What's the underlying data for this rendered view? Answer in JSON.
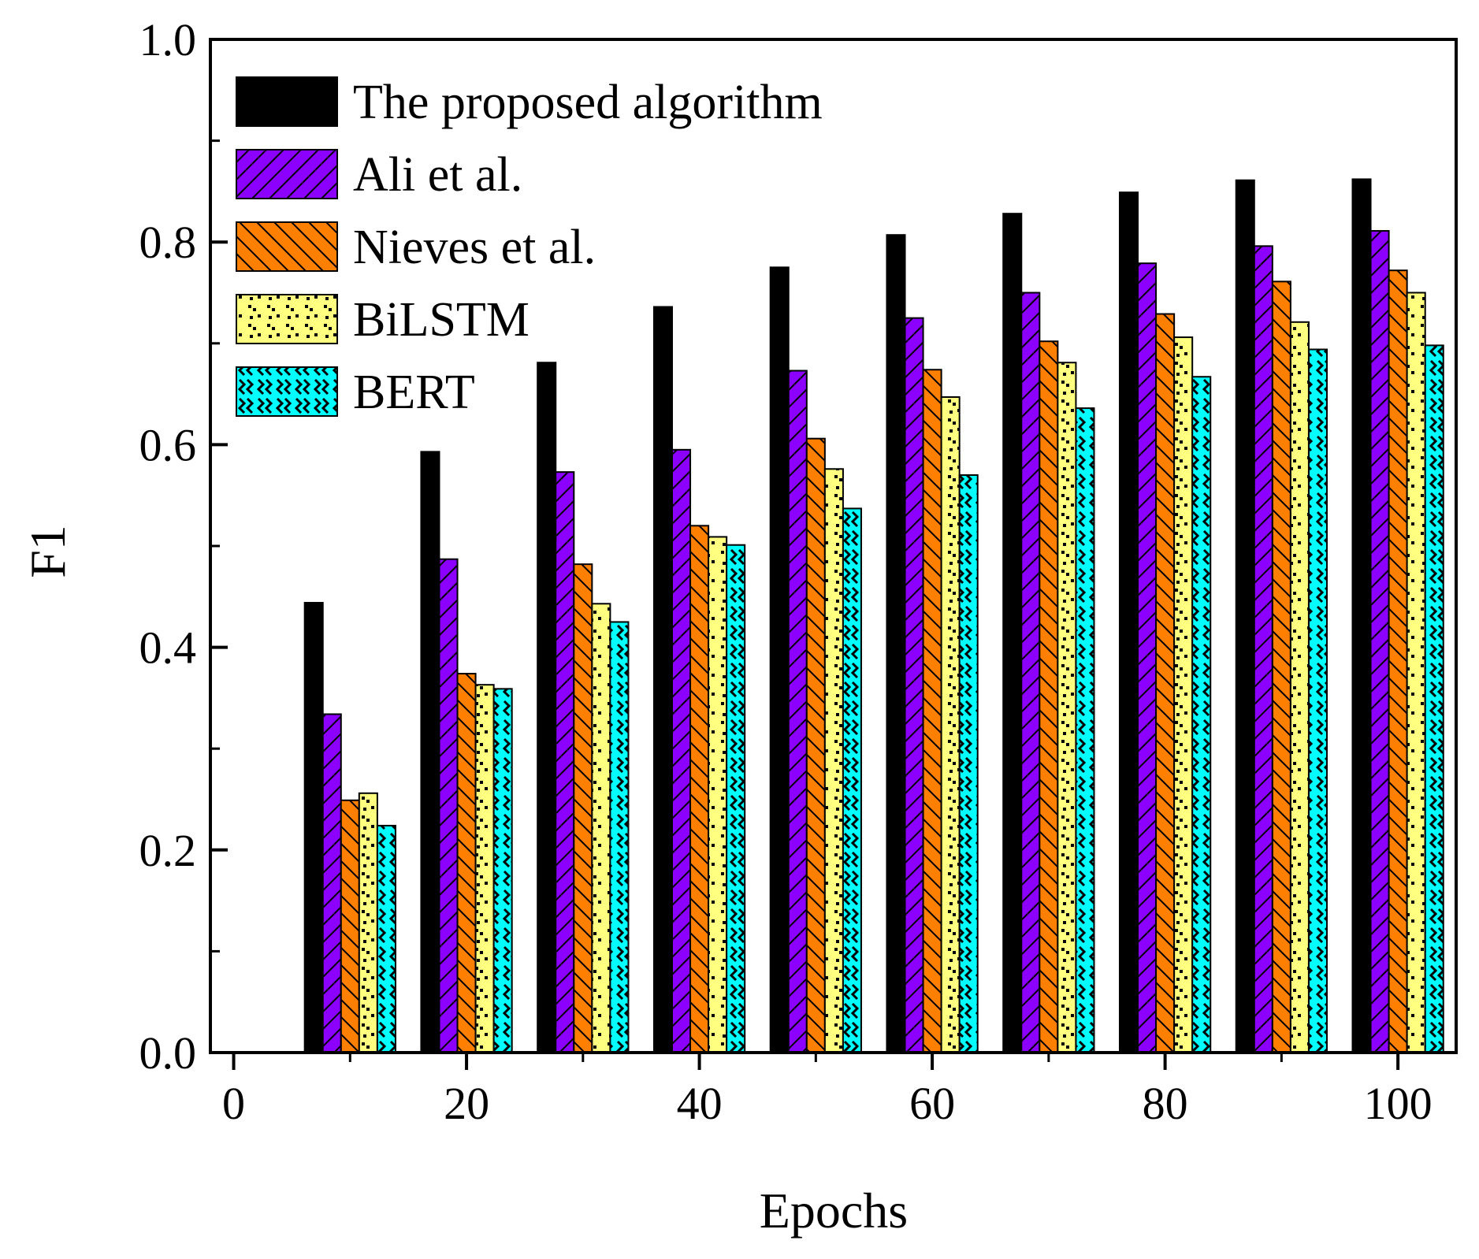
{
  "chart_data": {
    "type": "bar",
    "xlabel": "Epochs",
    "ylabel": "F1",
    "xlim": [
      -2,
      105
    ],
    "ylim": [
      0.0,
      1.0
    ],
    "x_ticks": [
      0,
      20,
      40,
      60,
      80,
      100
    ],
    "y_ticks": [
      0.0,
      0.2,
      0.4,
      0.6,
      0.8,
      1.0
    ],
    "x_tick_labels": [
      "0",
      "20",
      "40",
      "60",
      "80",
      "100"
    ],
    "y_tick_labels": [
      "0.0",
      "0.2",
      "0.4",
      "0.6",
      "0.8",
      "1.0"
    ],
    "categories": [
      10,
      20,
      30,
      40,
      50,
      60,
      70,
      80,
      90,
      100
    ],
    "grid": false,
    "legend_position": "top-left",
    "series": [
      {
        "name": "The proposed algorithm",
        "color": "#000000",
        "pattern": "solid",
        "values": [
          0.444,
          0.593,
          0.681,
          0.736,
          0.775,
          0.807,
          0.828,
          0.849,
          0.861,
          0.862
        ]
      },
      {
        "name": "Ali et al.",
        "color": "#8b00ff",
        "pattern": "forward-diagonal",
        "values": [
          0.334,
          0.487,
          0.573,
          0.595,
          0.673,
          0.725,
          0.75,
          0.779,
          0.796,
          0.811
        ]
      },
      {
        "name": "Nieves et al.",
        "color": "#ff8000",
        "pattern": "backward-diagonal",
        "values": [
          0.249,
          0.374,
          0.482,
          0.52,
          0.606,
          0.674,
          0.702,
          0.729,
          0.761,
          0.772
        ]
      },
      {
        "name": "BiLSTM",
        "color": "#ffff80",
        "pattern": "dots",
        "values": [
          0.256,
          0.363,
          0.443,
          0.509,
          0.576,
          0.647,
          0.681,
          0.706,
          0.721,
          0.75
        ]
      },
      {
        "name": "BERT",
        "color": "#00ffff",
        "pattern": "zigzag",
        "values": [
          0.224,
          0.359,
          0.425,
          0.501,
          0.537,
          0.57,
          0.636,
          0.667,
          0.694,
          0.698
        ]
      }
    ]
  }
}
